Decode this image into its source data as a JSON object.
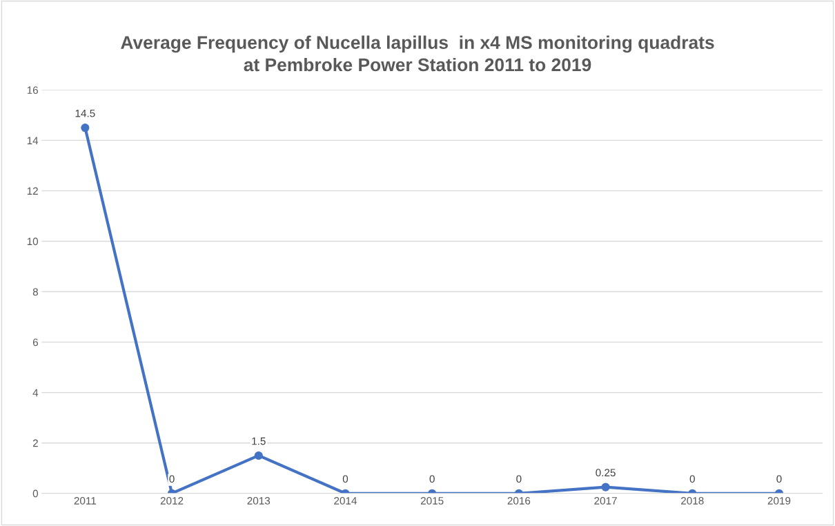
{
  "chart_data": {
    "type": "line",
    "title": "Average Frequency of Nucella lapillus  in x4 MS monitoring quadrats\nat Pembroke Power Station 2011 to 2019",
    "categories": [
      "2011",
      "2012",
      "2013",
      "2014",
      "2015",
      "2016",
      "2017",
      "2018",
      "2019"
    ],
    "series": [
      {
        "color": "#4472c4",
        "values": [
          14.5,
          0,
          1.5,
          0,
          0,
          0,
          0.25,
          0,
          0
        ]
      }
    ],
    "ylim": [
      0,
      16
    ],
    "yticks": [
      0,
      2,
      4,
      6,
      8,
      10,
      12,
      14,
      16
    ],
    "grid": "y",
    "marker": "circle",
    "line_style": "solid",
    "data_labels": true
  }
}
